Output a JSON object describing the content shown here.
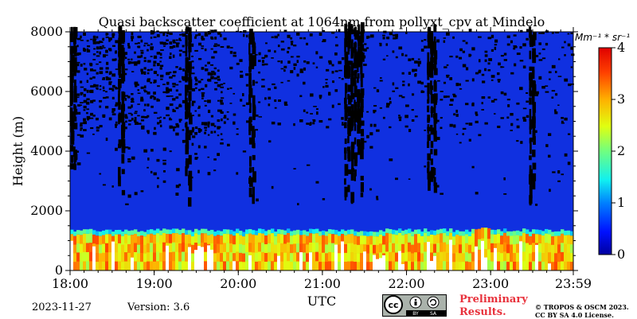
{
  "chart_data": {
    "type": "heatmap",
    "title": "Quasi backscatter coefficient at 1064nm from pollyxt_cpv at Mindelo",
    "xlabel": "UTC",
    "ylabel": "Height (m)",
    "x_ticks": [
      "18:00",
      "19:00",
      "20:00",
      "21:00",
      "22:00",
      "23:00",
      "23:59"
    ],
    "x_tick_hours": [
      18,
      19,
      20,
      21,
      22,
      23,
      23.983
    ],
    "xlim_hours": [
      18,
      23.983
    ],
    "y_ticks": [
      0,
      2000,
      4000,
      6000,
      8000
    ],
    "ylim": [
      0,
      8000
    ],
    "colorbar": {
      "unit": "Mm⁻¹ * sr⁻¹",
      "ticks": [
        0,
        1,
        2,
        3,
        4
      ],
      "range": [
        0,
        4
      ],
      "colormap": "jet"
    },
    "layers": {
      "boundary_layer_top_m": 1200,
      "transition_zone_top_m": 1350,
      "background_value": 0.1,
      "boundary_layer_value_range": [
        2.2,
        3.5
      ],
      "transition_value_range": [
        1.2,
        2.0
      ]
    },
    "signal_gaps_hours": [
      18.05,
      18.6,
      19.4,
      20.15,
      21.3,
      21.38,
      21.45,
      22.3,
      23.5
    ],
    "colors": {
      "no_data": "#000000",
      "below_range": "#ffffff"
    }
  },
  "footer": {
    "date": "2023-11-27",
    "version": "Version: 3.6",
    "preliminary_line1": "Preliminary",
    "preliminary_line2": "Results.",
    "license_line1": "© TROPOS & OSCM 2023.",
    "license_line2": "CC BY SA 4.0 License.",
    "badge_cc": "cc",
    "badge_by": "BY",
    "badge_sa": "SA"
  }
}
